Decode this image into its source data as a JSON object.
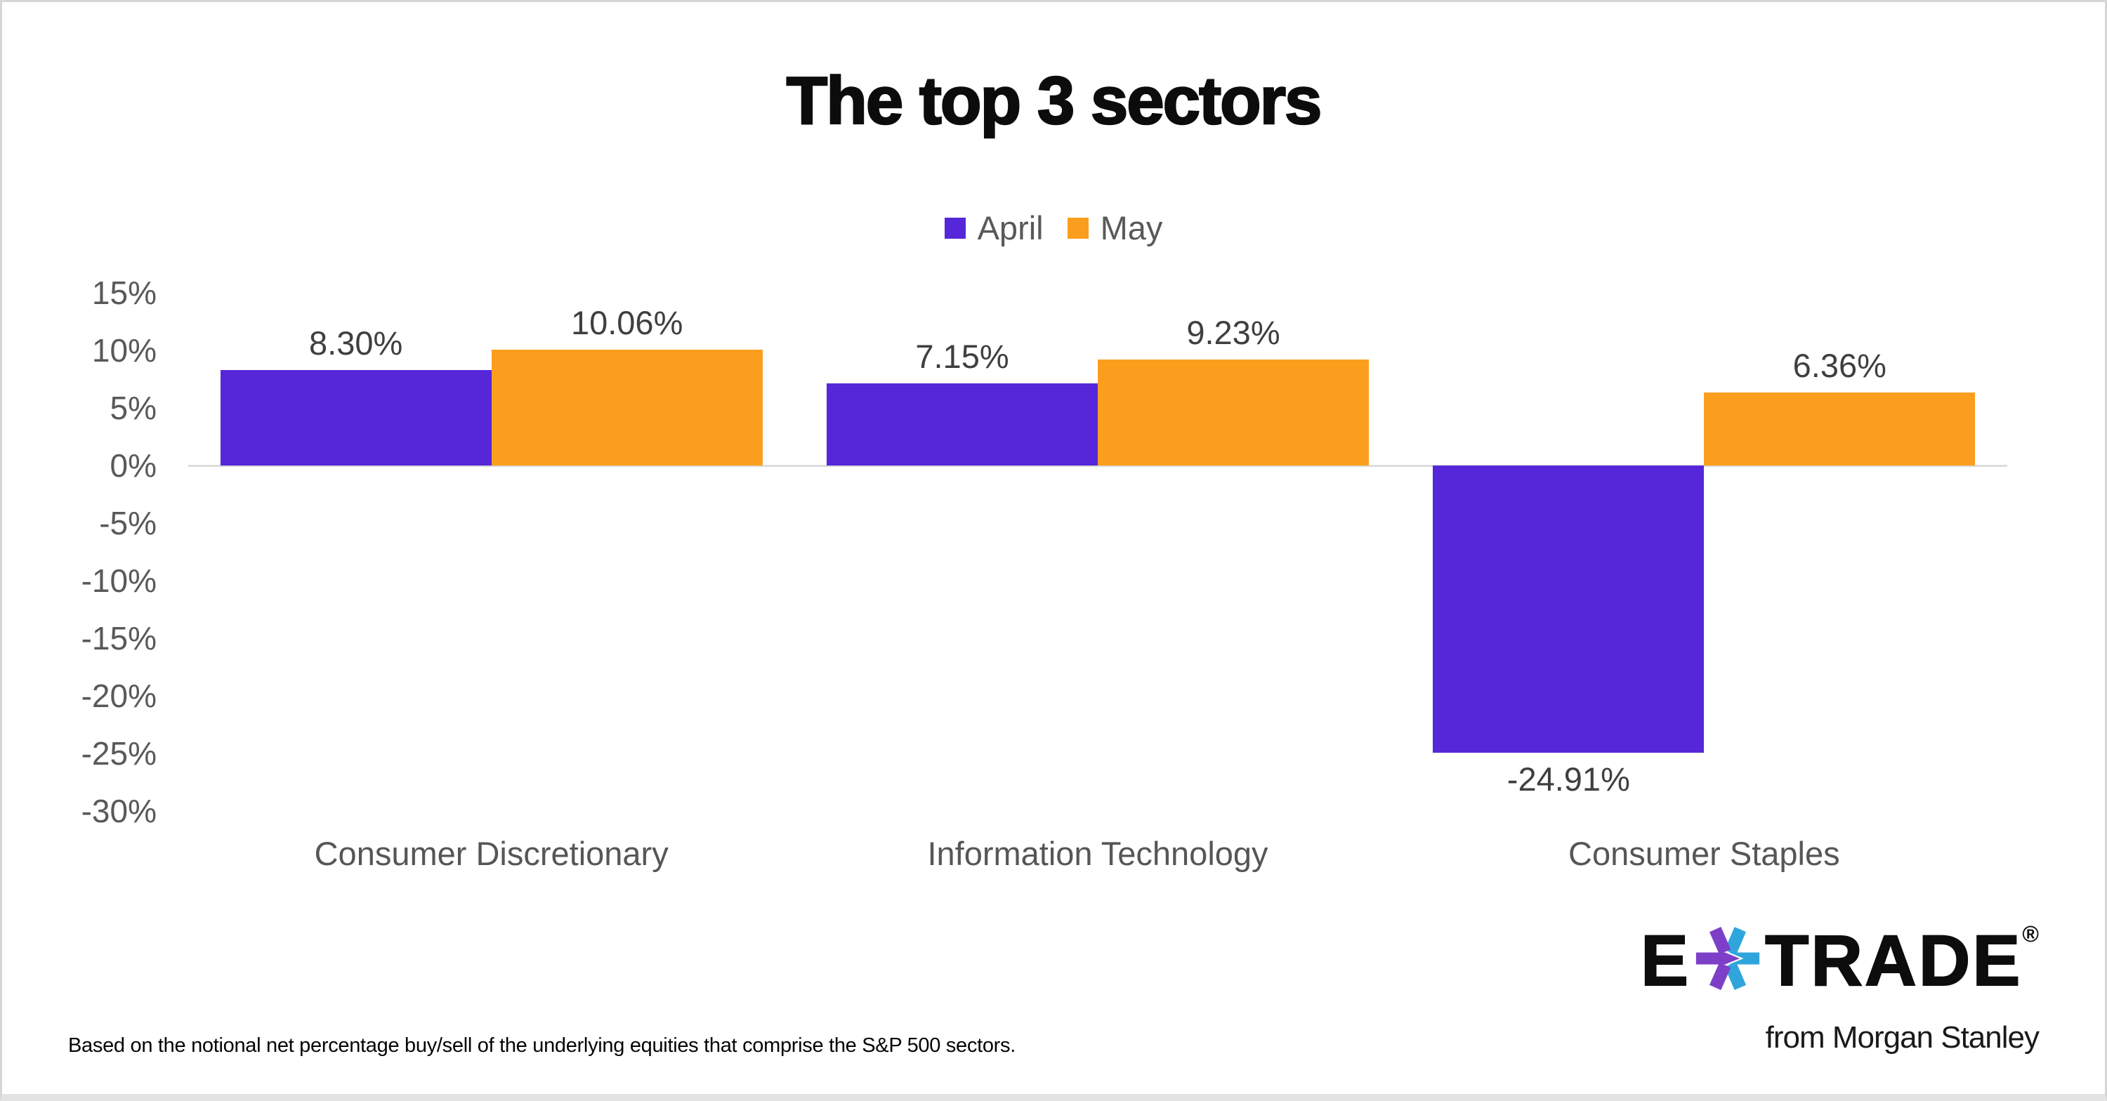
{
  "page": {
    "background": "#ffffff",
    "border_color": "#d6d6d6"
  },
  "chart_data": {
    "type": "bar",
    "title": "The top 3 sectors",
    "categories": [
      "Consumer Discretionary",
      "Information Technology",
      "Consumer Staples"
    ],
    "series": [
      {
        "name": "April",
        "color": "#5627D9",
        "values": [
          8.3,
          7.15,
          -24.91
        ],
        "labels": [
          "8.30%",
          "7.15%",
          "-24.91%"
        ]
      },
      {
        "name": "May",
        "color": "#FB9E1E",
        "values": [
          10.06,
          9.23,
          6.36
        ],
        "labels": [
          "10.06%",
          "9.23%",
          "6.36%"
        ]
      }
    ],
    "y_axis": {
      "min": -30,
      "max": 15,
      "step": 5,
      "tick_labels": [
        "15%",
        "10%",
        "5%",
        "0%",
        "-5%",
        "-10%",
        "-15%",
        "-20%",
        "-25%",
        "-30%"
      ]
    },
    "grid": "zero-line-only",
    "legend_position": "top-center",
    "text_colors": {
      "ticks": "#595959",
      "value_labels": "#3f3f3f",
      "categories": "#565656"
    },
    "zero_line_color": "#dcdcdc"
  },
  "footnote": "Based on the notional net percentage buy/sell of the underlying equities that comprise the S&P 500 sectors.",
  "logo": {
    "brand_left": "E",
    "brand_right": "TRADE",
    "registered_mark": "®",
    "tagline": "from Morgan Stanley",
    "star_purple": "#7D3FC8",
    "star_blue": "#2FA5DC",
    "text_color": "#0d0d0d"
  }
}
